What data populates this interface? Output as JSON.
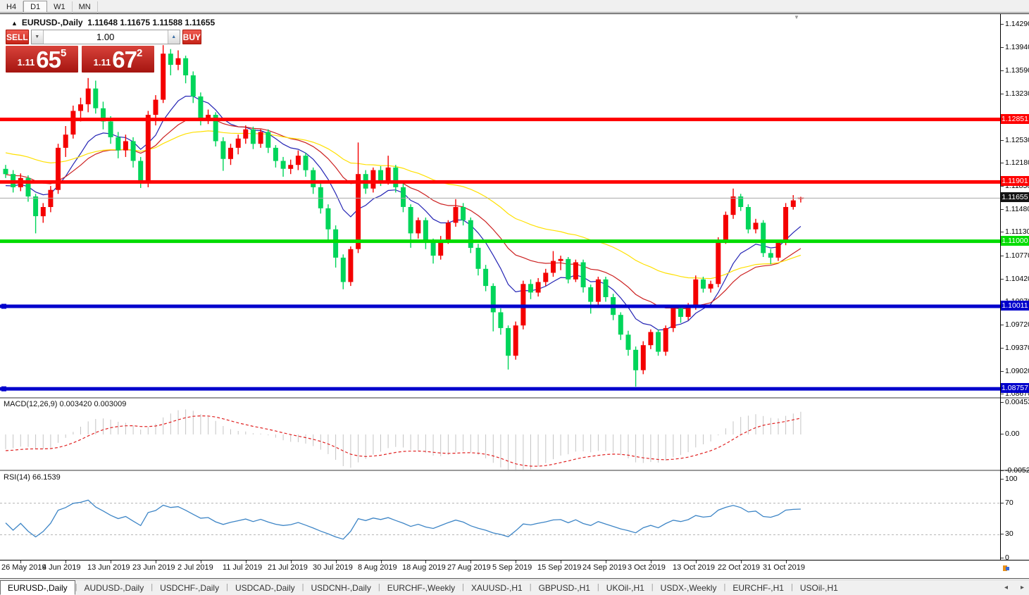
{
  "timeframe_bar": {
    "items": [
      {
        "label": "H4",
        "active": false
      },
      {
        "label": "D1",
        "active": true
      },
      {
        "label": "W1",
        "active": false
      },
      {
        "label": "MN",
        "active": false
      }
    ]
  },
  "chart_header": {
    "collapse_icon": "▲",
    "title": "EURUSD-,Daily",
    "ohlc": "1.11648 1.11675 1.11588 1.11655"
  },
  "trade_panel": {
    "sell_label": "SELL",
    "buy_label": "BUY",
    "volume": "1.00",
    "down_icon": "▼",
    "up_icon": "▲",
    "bid": {
      "prefix": "1.11",
      "big": "65",
      "sup": "5"
    },
    "ask": {
      "prefix": "1.11",
      "big": "67",
      "sup": "2"
    }
  },
  "macd_panel": {
    "label": "MACD(12,26,9)",
    "main_value": "0.003420",
    "signal_value": "0.003009",
    "axis_labels": [
      {
        "text": "0.004536",
        "value": 0.004536
      },
      {
        "text": "0.00",
        "value": 0.0
      },
      {
        "text": "-0.005205",
        "value": -0.005205
      }
    ]
  },
  "rsi_panel": {
    "label": "RSI(14)",
    "value": "66.1539",
    "axis_labels": [
      {
        "text": "100",
        "value": 100
      },
      {
        "text": "70",
        "value": 70
      },
      {
        "text": "30",
        "value": 30
      },
      {
        "text": "0",
        "value": 0
      }
    ]
  },
  "bottom_tabs": {
    "tabs": [
      {
        "label": "EURUSD-,Daily",
        "active": true
      },
      {
        "label": "AUDUSD-,Daily",
        "active": false
      },
      {
        "label": "USDCHF-,Daily",
        "active": false
      },
      {
        "label": "USDCAD-,Daily",
        "active": false
      },
      {
        "label": "USDCNH-,Daily",
        "active": false
      },
      {
        "label": "EURCHF-,Weekly",
        "active": false
      },
      {
        "label": "XAUUSD-,H1",
        "active": false
      },
      {
        "label": "GBPUSD-,H1",
        "active": false
      },
      {
        "label": "UKOil-,H1",
        "active": false
      },
      {
        "label": "USDX-,Weekly",
        "active": false
      },
      {
        "label": "EURCHF-,H1",
        "active": false
      },
      {
        "label": "USOil-,H1",
        "active": false
      }
    ],
    "scroll_left": "◂",
    "scroll_right": "▸"
  },
  "chart_data": {
    "type": "candlestick",
    "symbol": "EURUSD-",
    "period": "Daily",
    "ylim": [
      1.0862,
      1.1443
    ],
    "up_color": "#f40000",
    "down_color": "#00d55a",
    "x_labels": [
      "26 May 2019",
      "4 Jun 2019",
      "13 Jun 2019",
      "23 Jun 2019",
      "2 Jul 2019",
      "11 Jul 2019",
      "21 Jul 2019",
      "30 Jul 2019",
      "8 Aug 2019",
      "18 Aug 2019",
      "27 Aug 2019",
      "5 Sep 2019",
      "15 Sep 2019",
      "24 Sep 2019",
      "3 Oct 2019",
      "13 Oct 2019",
      "22 Oct 2019",
      "31 Oct 2019"
    ],
    "x_label_bar_indices": [
      2,
      8,
      14,
      20,
      26,
      32,
      38,
      44,
      50,
      56,
      62,
      68,
      74,
      80,
      86,
      92,
      98,
      104
    ],
    "price_axis_ticks": [
      "1.14290",
      "1.13940",
      "1.13590",
      "1.13230",
      "1.12880",
      "1.12530",
      "1.12180",
      "1.11830",
      "1.11480",
      "1.11130",
      "1.10770",
      "1.10420",
      "1.10070",
      "1.09720",
      "1.09370",
      "1.09020",
      "1.08670"
    ],
    "candles": [
      [
        1.121,
        1.1216,
        1.1196,
        1.1202
      ],
      [
        1.1202,
        1.1208,
        1.1174,
        1.1182
      ],
      [
        1.1182,
        1.1203,
        1.1176,
        1.1196
      ],
      [
        1.1196,
        1.12,
        1.116,
        1.1168
      ],
      [
        1.1168,
        1.1172,
        1.1112,
        1.1138
      ],
      [
        1.1138,
        1.1158,
        1.1128,
        1.1152
      ],
      [
        1.1152,
        1.1184,
        1.1144,
        1.1178
      ],
      [
        1.1178,
        1.1248,
        1.1172,
        1.1242
      ],
      [
        1.1242,
        1.1275,
        1.1228,
        1.1262
      ],
      [
        1.1262,
        1.1306,
        1.1256,
        1.1298
      ],
      [
        1.1298,
        1.1318,
        1.1282,
        1.1308
      ],
      [
        1.1308,
        1.1348,
        1.1296,
        1.1332
      ],
      [
        1.1332,
        1.1344,
        1.1294,
        1.1302
      ],
      [
        1.1302,
        1.1312,
        1.127,
        1.1282
      ],
      [
        1.1282,
        1.129,
        1.1248,
        1.1258
      ],
      [
        1.1258,
        1.1266,
        1.1226,
        1.1238
      ],
      [
        1.1238,
        1.1262,
        1.1228,
        1.1252
      ],
      [
        1.1252,
        1.1258,
        1.1212,
        1.1222
      ],
      [
        1.1222,
        1.1228,
        1.1181,
        1.1188
      ],
      [
        1.1188,
        1.1298,
        1.1182,
        1.1292
      ],
      [
        1.1292,
        1.1322,
        1.1276,
        1.1315
      ],
      [
        1.1315,
        1.1398,
        1.131,
        1.1385
      ],
      [
        1.1385,
        1.1392,
        1.1352,
        1.1368
      ],
      [
        1.1368,
        1.139,
        1.136,
        1.1378
      ],
      [
        1.1378,
        1.1382,
        1.134,
        1.1352
      ],
      [
        1.1352,
        1.1358,
        1.131,
        1.132
      ],
      [
        1.132,
        1.1326,
        1.1276,
        1.1286
      ],
      [
        1.1286,
        1.13,
        1.1278,
        1.1292
      ],
      [
        1.1292,
        1.1296,
        1.1244,
        1.1252
      ],
      [
        1.1252,
        1.1258,
        1.1207,
        1.1225
      ],
      [
        1.1225,
        1.1248,
        1.1216,
        1.1242
      ],
      [
        1.1242,
        1.1262,
        1.1232,
        1.1256
      ],
      [
        1.1256,
        1.1276,
        1.1248,
        1.127
      ],
      [
        1.127,
        1.1274,
        1.124,
        1.1248
      ],
      [
        1.1248,
        1.127,
        1.1242,
        1.1266
      ],
      [
        1.1266,
        1.127,
        1.1234,
        1.1242
      ],
      [
        1.1242,
        1.1246,
        1.1212,
        1.1222
      ],
      [
        1.1222,
        1.1228,
        1.1198,
        1.121
      ],
      [
        1.121,
        1.1224,
        1.1202,
        1.1216
      ],
      [
        1.1216,
        1.1238,
        1.1208,
        1.123
      ],
      [
        1.123,
        1.1234,
        1.1198,
        1.1208
      ],
      [
        1.1208,
        1.1212,
        1.1172,
        1.1182
      ],
      [
        1.1182,
        1.1188,
        1.1142,
        1.115
      ],
      [
        1.115,
        1.1156,
        1.1102,
        1.1118
      ],
      [
        1.1118,
        1.1124,
        1.106,
        1.1075
      ],
      [
        1.1075,
        1.108,
        1.1027,
        1.1038
      ],
      [
        1.1038,
        1.1092,
        1.1032,
        1.1088
      ],
      [
        1.1088,
        1.125,
        1.1082,
        1.1202
      ],
      [
        1.1202,
        1.1208,
        1.1172,
        1.118
      ],
      [
        1.118,
        1.1212,
        1.1174,
        1.1208
      ],
      [
        1.1208,
        1.1214,
        1.1184,
        1.1192
      ],
      [
        1.1192,
        1.123,
        1.1186,
        1.1212
      ],
      [
        1.1212,
        1.1216,
        1.1174,
        1.1182
      ],
      [
        1.1182,
        1.1188,
        1.1144,
        1.1152
      ],
      [
        1.1152,
        1.1156,
        1.109,
        1.1112
      ],
      [
        1.1112,
        1.1136,
        1.1104,
        1.1132
      ],
      [
        1.1132,
        1.1136,
        1.1088,
        1.1098
      ],
      [
        1.1098,
        1.1104,
        1.1066,
        1.1078
      ],
      [
        1.1078,
        1.1108,
        1.1072,
        1.1102
      ],
      [
        1.1102,
        1.1132,
        1.1096,
        1.1128
      ],
      [
        1.1128,
        1.1164,
        1.1122,
        1.1152
      ],
      [
        1.1152,
        1.1158,
        1.1124,
        1.1132
      ],
      [
        1.1132,
        1.1136,
        1.1082,
        1.109
      ],
      [
        1.109,
        1.1096,
        1.1048,
        1.1058
      ],
      [
        1.1058,
        1.1064,
        1.1024,
        1.1032
      ],
      [
        1.1032,
        1.1036,
        1.0963,
        1.0992
      ],
      [
        1.0992,
        1.0998,
        1.0958,
        1.0968
      ],
      [
        1.0968,
        1.0972,
        1.0905,
        1.0926
      ],
      [
        1.0926,
        1.0978,
        1.092,
        1.0972
      ],
      [
        1.0972,
        1.104,
        1.0966,
        1.1035
      ],
      [
        1.1035,
        1.1042,
        1.1012,
        1.1022
      ],
      [
        1.1022,
        1.1044,
        1.1016,
        1.1038
      ],
      [
        1.1038,
        1.1058,
        1.1032,
        1.1052
      ],
      [
        1.1052,
        1.1085,
        1.1046,
        1.107
      ],
      [
        1.107,
        1.1078,
        1.1056,
        1.1073
      ],
      [
        1.1073,
        1.1076,
        1.1036,
        1.1042
      ],
      [
        1.1042,
        1.1072,
        1.1038,
        1.1068
      ],
      [
        1.1068,
        1.1072,
        1.1022,
        1.103
      ],
      [
        1.103,
        1.1034,
        1.099,
        1.1008
      ],
      [
        1.1008,
        1.1046,
        1.1002,
        1.1042
      ],
      [
        1.1042,
        1.1046,
        1.1008,
        1.1015
      ],
      [
        1.1015,
        1.102,
        1.098,
        1.0988
      ],
      [
        1.0988,
        1.0992,
        1.095,
        1.0958
      ],
      [
        1.0958,
        1.0964,
        1.0926,
        1.0935
      ],
      [
        1.0935,
        1.094,
        1.0879,
        1.0904
      ],
      [
        1.0904,
        1.0948,
        1.0898,
        1.0942
      ],
      [
        1.0942,
        1.0966,
        1.0936,
        1.0962
      ],
      [
        1.0962,
        1.0966,
        1.0926,
        1.0932
      ],
      [
        1.0932,
        1.0972,
        1.0926,
        1.0968
      ],
      [
        1.0968,
        1.1002,
        1.0962,
        1.0998
      ],
      [
        1.0998,
        1.1002,
        1.0976,
        1.0985
      ],
      [
        1.0985,
        1.1006,
        1.098,
        1.1002
      ],
      [
        1.1002,
        1.1048,
        1.0996,
        1.1042
      ],
      [
        1.1042,
        1.1046,
        1.1022,
        1.1028
      ],
      [
        1.1028,
        1.104,
        1.1022,
        1.1035
      ],
      [
        1.1035,
        1.1106,
        1.103,
        1.1102
      ],
      [
        1.1102,
        1.1145,
        1.1096,
        1.114
      ],
      [
        1.114,
        1.118,
        1.1134,
        1.1168
      ],
      [
        1.1168,
        1.1172,
        1.1146,
        1.1152
      ],
      [
        1.1152,
        1.1156,
        1.1112,
        1.1118
      ],
      [
        1.1118,
        1.1134,
        1.1112,
        1.1128
      ],
      [
        1.1128,
        1.1132,
        1.1076,
        1.1082
      ],
      [
        1.1082,
        1.1088,
        1.1065,
        1.1075
      ],
      [
        1.1075,
        1.1102,
        1.107,
        1.1098
      ],
      [
        1.1098,
        1.1158,
        1.1094,
        1.1152
      ],
      [
        1.1152,
        1.117,
        1.1148,
        1.1162
      ],
      [
        1.11648,
        1.11675,
        1.11588,
        1.11655
      ]
    ],
    "warmup_offscreen_estimate": {
      "count": 60,
      "start": 1.137,
      "end": 1.1165
    },
    "moving_averages": [
      {
        "name": "MA fast",
        "period": 10,
        "color": "#2424b4"
      },
      {
        "name": "MA medium",
        "period": 22,
        "color": "#cc2020"
      },
      {
        "name": "MA slow",
        "period": 45,
        "color": "#ffe000"
      }
    ],
    "hlines": [
      {
        "price": 1.12851,
        "label": "1.12851",
        "color": "#ff0000",
        "thickness": 5,
        "handles": false
      },
      {
        "price": 1.11901,
        "label": "1.11901",
        "color": "#ff0000",
        "thickness": 5,
        "handles": false
      },
      {
        "price": 1.11,
        "label": "1.11000",
        "color": "#00dc00",
        "thickness": 5,
        "handles": false
      },
      {
        "price": 1.10011,
        "label": "1.10011",
        "color": "#0000cc",
        "thickness": 5,
        "handles": true
      },
      {
        "price": 1.08757,
        "label": "1.08757",
        "color": "#0000cc",
        "thickness": 5,
        "handles": true
      }
    ],
    "current_price": {
      "price": 1.11655,
      "label": "1.11655",
      "line_color": "#a8a8a8",
      "badge_color": "#141414"
    },
    "macd": {
      "fast": 12,
      "slow": 26,
      "signal": 9,
      "ylim": [
        -0.005205,
        0.004536
      ],
      "hist_color": "#c4c4c4",
      "signal_color": "#e02020"
    },
    "rsi": {
      "period": 14,
      "levels": [
        30,
        70
      ],
      "ylim": [
        0,
        100
      ],
      "color": "#3d85c6",
      "level_color": "#b4b4b4"
    }
  }
}
